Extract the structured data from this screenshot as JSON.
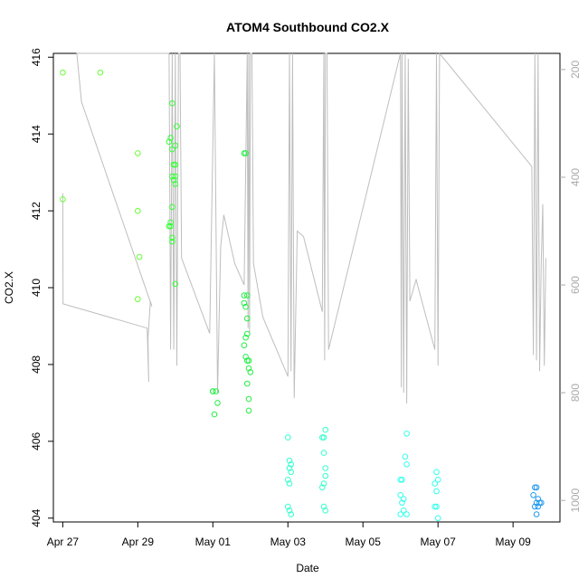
{
  "chart_data": {
    "type": "scatter",
    "title": "ATOM4 Southbound CO2.X",
    "xlabel": "Date",
    "ylabel": "CO2.X",
    "xlim": [
      "2016-04-26T18:00",
      "2016-05-10T06:00"
    ],
    "ylim": [
      403.9,
      416.1
    ],
    "x_ticks": [
      {
        "date": "2016-04-27",
        "label": "Apr 27"
      },
      {
        "date": "2016-04-29",
        "label": "Apr 29"
      },
      {
        "date": "2016-05-01",
        "label": "May 01"
      },
      {
        "date": "2016-05-03",
        "label": "May 03"
      },
      {
        "date": "2016-05-05",
        "label": "May 05"
      },
      {
        "date": "2016-05-07",
        "label": "May 07"
      },
      {
        "date": "2016-05-09",
        "label": "May 09"
      }
    ],
    "y_ticks": [
      404,
      406,
      408,
      410,
      412,
      414,
      416
    ],
    "y2_axis": {
      "ylim": [
        1040,
        170
      ],
      "ticks": [
        200,
        400,
        600,
        800,
        1000
      ],
      "color": "#aaaaaa",
      "series": {
        "name": "",
        "color": "#bebebe",
        "points": [
          [
            "2016-04-27T00:00",
            430
          ],
          [
            "2016-04-27T00:10",
            635
          ],
          [
            "2016-04-29T06:00",
            680
          ],
          [
            "2016-04-29T07:00",
            780
          ],
          [
            "2016-04-29T06:30",
            700
          ],
          [
            "2016-04-29T08:00",
            630
          ],
          [
            "2016-04-29T09:00",
            640
          ],
          [
            "2016-04-27T12:00",
            260
          ],
          [
            "2016-04-27T09:00",
            170
          ],
          [
            "2016-04-29T18:00",
            170
          ],
          [
            "2016-04-29T20:00",
            170
          ],
          [
            "2016-04-29T21:00",
            720
          ],
          [
            "2016-04-29T22:00",
            170
          ],
          [
            "2016-04-29T23:00",
            720
          ],
          [
            "2016-04-30T00:00",
            170
          ],
          [
            "2016-04-30T01:00",
            750
          ],
          [
            "2016-04-30T02:00",
            170
          ],
          [
            "2016-04-30T03:00",
            170
          ],
          [
            "2016-04-30T04:00",
            550
          ],
          [
            "2016-04-30T22:00",
            690
          ],
          [
            "2016-05-01T01:00",
            170
          ],
          [
            "2016-05-01T03:00",
            800
          ],
          [
            "2016-05-01T05:00",
            530
          ],
          [
            "2016-05-01T07:00",
            470
          ],
          [
            "2016-05-01T14:00",
            560
          ],
          [
            "2016-05-01T20:00",
            600
          ],
          [
            "2016-05-01T22:00",
            170
          ],
          [
            "2016-05-01T22:30",
            680
          ],
          [
            "2016-05-01T23:00",
            170
          ],
          [
            "2016-05-01T23:30",
            690
          ],
          [
            "2016-05-02T00:00",
            170
          ],
          [
            "2016-05-02T01:00",
            170
          ],
          [
            "2016-05-02T02:00",
            560
          ],
          [
            "2016-05-02T08:00",
            660
          ],
          [
            "2016-05-03T00:00",
            770
          ],
          [
            "2016-05-03T01:00",
            170
          ],
          [
            "2016-05-03T02:00",
            760
          ],
          [
            "2016-05-03T03:00",
            170
          ],
          [
            "2016-05-03T04:00",
            810
          ],
          [
            "2016-05-03T06:00",
            500
          ],
          [
            "2016-05-03T10:00",
            510
          ],
          [
            "2016-05-03T22:00",
            650
          ],
          [
            "2016-05-03T23:00",
            170
          ],
          [
            "2016-05-03T23:30",
            740
          ],
          [
            "2016-05-04T00:00",
            170
          ],
          [
            "2016-05-04T01:00",
            170
          ],
          [
            "2016-05-04T02:00",
            720
          ],
          [
            "2016-05-06T00:00",
            170
          ],
          [
            "2016-05-06T00:30",
            790
          ],
          [
            "2016-05-06T01:00",
            170
          ],
          [
            "2016-05-06T02:00",
            800
          ],
          [
            "2016-05-06T03:00",
            170
          ],
          [
            "2016-05-06T04:00",
            820
          ],
          [
            "2016-05-06T05:00",
            180
          ],
          [
            "2016-05-06T06:00",
            630
          ],
          [
            "2016-05-06T10:00",
            590
          ],
          [
            "2016-05-06T22:00",
            720
          ],
          [
            "2016-05-06T23:00",
            170
          ],
          [
            "2016-05-07T00:00",
            750
          ],
          [
            "2016-05-07T01:00",
            170
          ],
          [
            "2016-05-09T12:00",
            380
          ],
          [
            "2016-05-09T13:00",
            730
          ],
          [
            "2016-05-09T14:00",
            170
          ],
          [
            "2016-05-09T15:00",
            740
          ],
          [
            "2016-05-09T16:00",
            170
          ],
          [
            "2016-05-09T17:00",
            760
          ],
          [
            "2016-05-09T18:00",
            560
          ],
          [
            "2016-05-09T19:00",
            450
          ],
          [
            "2016-05-09T20:00",
            750
          ],
          [
            "2016-05-09T21:00",
            550
          ]
        ]
      }
    },
    "series": [
      {
        "name": "",
        "color": "#66ff33",
        "points": [
          [
            "2016-04-27T00:00",
            415.6
          ],
          [
            "2016-04-27T00:00",
            412.3
          ],
          [
            "2016-04-28T00:00",
            415.6
          ],
          [
            "2016-04-29T00:00",
            413.5
          ],
          [
            "2016-04-29T00:00",
            412.0
          ],
          [
            "2016-04-29T01:00",
            410.8
          ],
          [
            "2016-04-29T00:00",
            409.7
          ]
        ]
      },
      {
        "name": "",
        "color": "#33ff33",
        "points": [
          [
            "2016-04-29T20:00",
            413.8
          ],
          [
            "2016-04-29T21:00",
            413.9
          ],
          [
            "2016-04-29T22:00",
            414.8
          ],
          [
            "2016-04-29T22:00",
            413.6
          ],
          [
            "2016-04-29T23:00",
            413.2
          ],
          [
            "2016-04-30T00:00",
            413.7
          ],
          [
            "2016-04-30T01:00",
            414.2
          ],
          [
            "2016-04-30T00:00",
            413.2
          ],
          [
            "2016-04-29T22:00",
            412.9
          ],
          [
            "2016-04-29T23:00",
            412.8
          ],
          [
            "2016-04-30T00:00",
            412.7
          ],
          [
            "2016-04-30T00:00",
            412.9
          ],
          [
            "2016-04-29T22:00",
            412.1
          ],
          [
            "2016-04-29T21:00",
            411.7
          ],
          [
            "2016-04-29T20:00",
            411.6
          ],
          [
            "2016-04-29T21:00",
            411.6
          ],
          [
            "2016-04-29T22:00",
            411.3
          ],
          [
            "2016-04-29T22:00",
            411.2
          ],
          [
            "2016-04-30T00:00",
            410.1
          ]
        ]
      },
      {
        "name": "",
        "color": "#22ee44",
        "points": [
          [
            "2016-05-01T00:00",
            407.3
          ],
          [
            "2016-05-01T02:00",
            407.3
          ],
          [
            "2016-05-01T03:00",
            407.0
          ],
          [
            "2016-05-01T01:00",
            406.7
          ],
          [
            "2016-05-01T00:00",
            407.3
          ],
          [
            "2016-05-01T20:00",
            413.5
          ],
          [
            "2016-05-01T21:00",
            413.5
          ],
          [
            "2016-05-01T20:00",
            409.8
          ],
          [
            "2016-05-01T22:00",
            409.8
          ],
          [
            "2016-05-01T20:00",
            409.6
          ],
          [
            "2016-05-01T21:00",
            409.5
          ],
          [
            "2016-05-01T22:00",
            409.2
          ],
          [
            "2016-05-01T22:00",
            408.8
          ],
          [
            "2016-05-01T21:00",
            408.7
          ],
          [
            "2016-05-01T20:00",
            408.5
          ],
          [
            "2016-05-01T21:00",
            408.2
          ],
          [
            "2016-05-01T22:00",
            408.1
          ],
          [
            "2016-05-01T23:00",
            408.1
          ],
          [
            "2016-05-01T23:00",
            407.9
          ],
          [
            "2016-05-02T00:00",
            407.8
          ],
          [
            "2016-05-01T22:00",
            407.5
          ],
          [
            "2016-05-01T23:00",
            407.1
          ],
          [
            "2016-05-01T23:00",
            406.8
          ]
        ]
      },
      {
        "name": "",
        "color": "#33ffcc",
        "points": [
          [
            "2016-05-03T00:00",
            406.1
          ],
          [
            "2016-05-03T01:00",
            405.5
          ],
          [
            "2016-05-03T02:00",
            405.4
          ],
          [
            "2016-05-03T01:00",
            405.3
          ],
          [
            "2016-05-03T02:00",
            405.2
          ],
          [
            "2016-05-03T00:00",
            405.0
          ],
          [
            "2016-05-03T01:00",
            404.9
          ],
          [
            "2016-05-03T00:00",
            404.3
          ],
          [
            "2016-05-03T01:00",
            404.2
          ],
          [
            "2016-05-03T02:00",
            404.1
          ],
          [
            "2016-05-03T22:00",
            406.1
          ],
          [
            "2016-05-04T00:00",
            406.3
          ],
          [
            "2016-05-03T23:00",
            406.1
          ],
          [
            "2016-05-03T23:00",
            405.7
          ],
          [
            "2016-05-04T00:00",
            405.3
          ],
          [
            "2016-05-04T00:00",
            405.1
          ],
          [
            "2016-05-03T23:00",
            404.9
          ],
          [
            "2016-05-03T22:00",
            404.8
          ],
          [
            "2016-05-03T23:00",
            404.3
          ],
          [
            "2016-05-04T00:00",
            404.2
          ]
        ]
      },
      {
        "name": "",
        "color": "#33ffee",
        "points": [
          [
            "2016-05-06T04:00",
            406.2
          ],
          [
            "2016-05-06T03:00",
            405.6
          ],
          [
            "2016-05-06T04:00",
            405.4
          ],
          [
            "2016-05-06T00:00",
            405.0
          ],
          [
            "2016-05-06T01:00",
            405.0
          ],
          [
            "2016-05-06T00:00",
            404.6
          ],
          [
            "2016-05-06T02:00",
            404.5
          ],
          [
            "2016-05-06T01:00",
            404.4
          ],
          [
            "2016-05-06T02:00",
            404.2
          ],
          [
            "2016-05-06T00:00",
            404.1
          ],
          [
            "2016-05-06T04:00",
            404.1
          ],
          [
            "2016-05-06T23:00",
            405.2
          ],
          [
            "2016-05-07T00:00",
            405.0
          ],
          [
            "2016-05-06T22:00",
            404.9
          ],
          [
            "2016-05-06T23:00",
            404.7
          ],
          [
            "2016-05-06T22:00",
            404.3
          ],
          [
            "2016-05-06T23:00",
            404.3
          ],
          [
            "2016-05-07T00:00",
            404.0
          ]
        ]
      },
      {
        "name": "",
        "color": "#2299ee",
        "points": [
          [
            "2016-05-09T14:00",
            404.8
          ],
          [
            "2016-05-09T15:00",
            404.8
          ],
          [
            "2016-05-09T13:00",
            404.6
          ],
          [
            "2016-05-09T16:00",
            404.5
          ],
          [
            "2016-05-09T17:00",
            404.4
          ],
          [
            "2016-05-09T15:00",
            404.4
          ],
          [
            "2016-05-09T14:00",
            404.3
          ],
          [
            "2016-05-09T16:00",
            404.3
          ],
          [
            "2016-05-09T18:00",
            404.4
          ],
          [
            "2016-05-09T15:00",
            404.1
          ]
        ]
      }
    ],
    "grid": false,
    "legend": "none"
  }
}
